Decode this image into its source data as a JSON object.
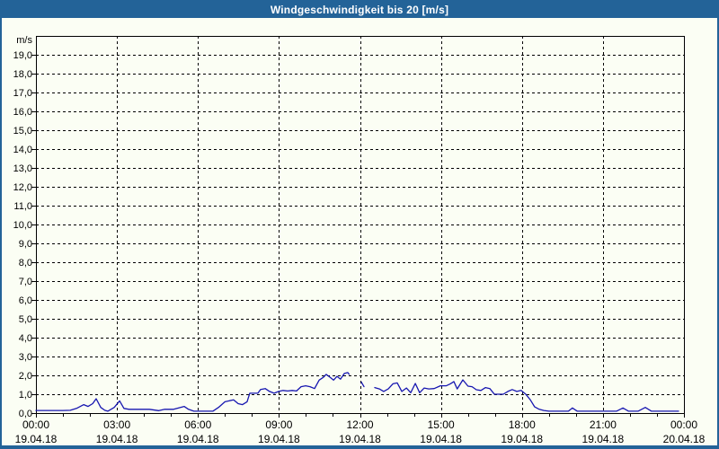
{
  "window": {
    "title": "Windgeschwindigkeit bis 20 [m/s]"
  },
  "colors": {
    "accent": "#236398",
    "title_text": "#ffffff",
    "background": "#fbfef4",
    "grid": "#000000",
    "axis": "#000000",
    "line": "#1616b0"
  },
  "chart_data": {
    "type": "line",
    "title": "Windgeschwindigkeit bis 20 [m/s]",
    "ylabel": "m/s",
    "ylim": [
      0,
      20
    ],
    "ytick_step": 1,
    "decimal_separator": ",",
    "x_hours_range": [
      0,
      24
    ],
    "x_major_tick_interval_hours": 3,
    "x_minor_tick_interval_hours": 1,
    "grid_style": "dashed",
    "legend": "none",
    "x_ticks": [
      {
        "hour": 0,
        "time": "00:00",
        "date": "19.04.18"
      },
      {
        "hour": 3,
        "time": "03:00",
        "date": "19.04.18"
      },
      {
        "hour": 6,
        "time": "06:00",
        "date": "19.04.18"
      },
      {
        "hour": 9,
        "time": "09:00",
        "date": "19.04.18"
      },
      {
        "hour": 12,
        "time": "12:00",
        "date": "19.04.18"
      },
      {
        "hour": 15,
        "time": "15:00",
        "date": "19.04.18"
      },
      {
        "hour": 18,
        "time": "18:00",
        "date": "19.04.18"
      },
      {
        "hour": 21,
        "time": "21:00",
        "date": "19.04.18"
      },
      {
        "hour": 24,
        "time": "00:00",
        "date": "20.04.18"
      }
    ],
    "series": [
      {
        "name": "Windgeschwindigkeit",
        "unit": "m/s",
        "color": "#1616b0",
        "points": [
          [
            0,
            0.14
          ],
          [
            0.5,
            0.14
          ],
          [
            1.0,
            0.14
          ],
          [
            1.27,
            0.15
          ],
          [
            1.5,
            0.25
          ],
          [
            1.77,
            0.45
          ],
          [
            1.93,
            0.35
          ],
          [
            2.1,
            0.5
          ],
          [
            2.23,
            0.76
          ],
          [
            2.4,
            0.3
          ],
          [
            2.55,
            0.15
          ],
          [
            2.66,
            0.1
          ],
          [
            2.9,
            0.3
          ],
          [
            3.1,
            0.65
          ],
          [
            3.26,
            0.25
          ],
          [
            3.45,
            0.2
          ],
          [
            3.8,
            0.2
          ],
          [
            4.2,
            0.2
          ],
          [
            4.55,
            0.13
          ],
          [
            4.77,
            0.2
          ],
          [
            5.1,
            0.2
          ],
          [
            5.49,
            0.35
          ],
          [
            5.65,
            0.2
          ],
          [
            5.85,
            0.1
          ],
          [
            6.2,
            0.1
          ],
          [
            6.55,
            0.1
          ],
          [
            6.76,
            0.3
          ],
          [
            7.0,
            0.6
          ],
          [
            7.32,
            0.7
          ],
          [
            7.49,
            0.5
          ],
          [
            7.65,
            0.45
          ],
          [
            7.82,
            0.6
          ],
          [
            7.92,
            1.05
          ],
          [
            8.22,
            1.05
          ],
          [
            8.32,
            1.25
          ],
          [
            8.49,
            1.3
          ],
          [
            8.65,
            1.15
          ],
          [
            8.82,
            1.05
          ],
          [
            8.99,
            1.15
          ],
          [
            9.15,
            1.2
          ],
          [
            9.32,
            1.17
          ],
          [
            9.49,
            1.2
          ],
          [
            9.65,
            1.17
          ],
          [
            9.82,
            1.4
          ],
          [
            9.99,
            1.45
          ],
          [
            10.15,
            1.4
          ],
          [
            10.32,
            1.3
          ],
          [
            10.49,
            1.75
          ],
          [
            10.65,
            1.9
          ],
          [
            10.75,
            2.05
          ],
          [
            10.89,
            1.9
          ],
          [
            11.02,
            1.75
          ],
          [
            11.15,
            1.95
          ],
          [
            11.28,
            1.8
          ],
          [
            11.42,
            2.1
          ],
          [
            11.55,
            2.15
          ],
          [
            11.6,
            2.05
          ],
          null,
          [
            12.05,
            1.65
          ],
          [
            12.15,
            1.4
          ],
          null,
          [
            12.55,
            1.35
          ],
          [
            12.72,
            1.28
          ],
          [
            12.88,
            1.15
          ],
          [
            13.05,
            1.28
          ],
          [
            13.22,
            1.55
          ],
          [
            13.38,
            1.6
          ],
          [
            13.55,
            1.15
          ],
          [
            13.72,
            1.33
          ],
          [
            13.88,
            1.08
          ],
          [
            14.05,
            1.57
          ],
          [
            14.21,
            1.08
          ],
          [
            14.38,
            1.33
          ],
          [
            14.55,
            1.28
          ],
          [
            14.75,
            1.3
          ],
          [
            14.98,
            1.45
          ],
          [
            15.2,
            1.45
          ],
          [
            15.35,
            1.55
          ],
          [
            15.48,
            1.67
          ],
          [
            15.6,
            1.28
          ],
          [
            15.81,
            1.76
          ],
          [
            16.0,
            1.43
          ],
          [
            16.15,
            1.4
          ],
          [
            16.31,
            1.24
          ],
          [
            16.48,
            1.2
          ],
          [
            16.65,
            1.35
          ],
          [
            16.81,
            1.3
          ],
          [
            16.98,
            1.0
          ],
          [
            17.31,
            1.0
          ],
          [
            17.48,
            1.15
          ],
          [
            17.64,
            1.25
          ],
          [
            17.81,
            1.15
          ],
          [
            17.97,
            1.2
          ],
          [
            18.14,
            1.0
          ],
          [
            18.31,
            0.7
          ],
          [
            18.47,
            0.33
          ],
          [
            18.64,
            0.2
          ],
          [
            18.81,
            0.14
          ],
          [
            19.0,
            0.1
          ],
          [
            19.4,
            0.1
          ],
          [
            19.72,
            0.1
          ],
          [
            19.87,
            0.27
          ],
          [
            20.05,
            0.1
          ],
          [
            20.5,
            0.1
          ],
          [
            21.0,
            0.1
          ],
          [
            21.5,
            0.1
          ],
          [
            21.74,
            0.27
          ],
          [
            21.95,
            0.1
          ],
          [
            22.3,
            0.1
          ],
          [
            22.57,
            0.3
          ],
          [
            22.8,
            0.1
          ],
          [
            23.2,
            0.1
          ],
          [
            23.5,
            0.1
          ],
          [
            23.8,
            0.1
          ]
        ]
      }
    ]
  }
}
